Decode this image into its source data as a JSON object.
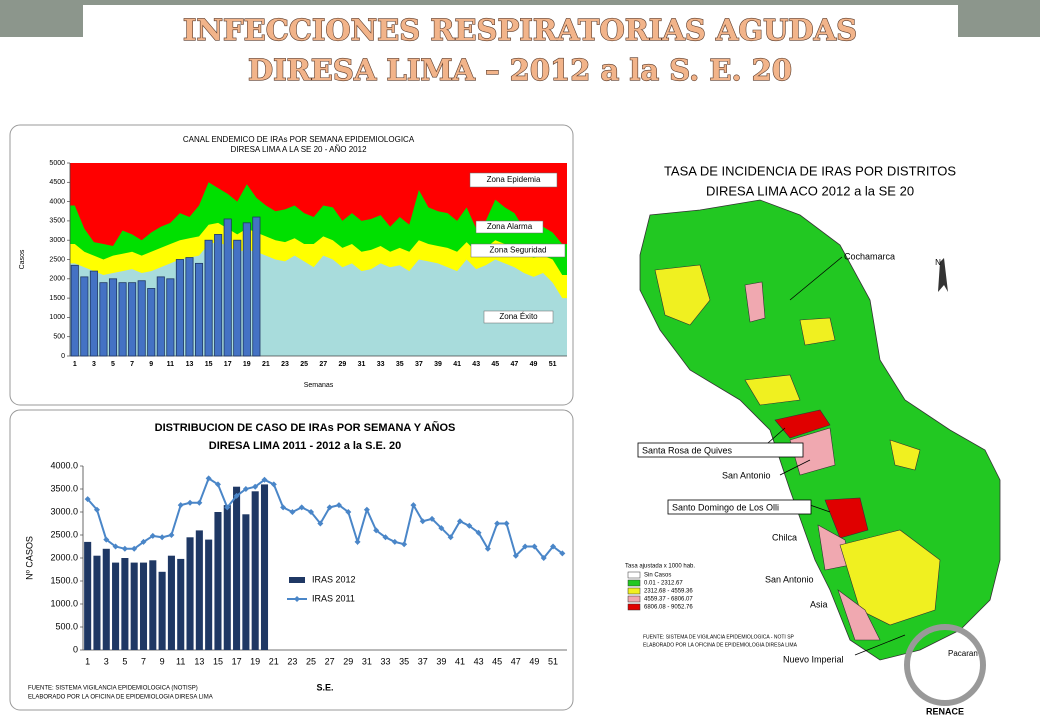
{
  "slide": {
    "title": "INFECCIONES RESPIRATORIAS  AGUDAS",
    "subtitle": "DIRESA LIMA – 2012 a la  S. E. 20"
  },
  "chart_data": [
    {
      "type": "bar",
      "title": "CANAL ENDEMICO  DE IRAs POR SEMANA EPIDEMIOLOGICA",
      "subtitle": "DIRESA  LIMA A LA SE 20 - AÑO 2012",
      "x_label": "Semanas",
      "y_label": "Casos",
      "categories": [
        "1",
        null,
        "3",
        null,
        "5",
        null,
        "7",
        null,
        "9",
        null,
        "11",
        null,
        "13",
        null,
        "15",
        null,
        "17",
        null,
        "19",
        null,
        "21",
        null,
        "23",
        null,
        "25",
        null,
        "27",
        null,
        "29",
        null,
        "31",
        null,
        "33",
        null,
        "35",
        null,
        "37",
        null,
        "39",
        null,
        "41",
        null,
        "43",
        null,
        "45",
        null,
        "47",
        null,
        "49",
        null,
        "51",
        null
      ],
      "ylim": [
        0,
        5000
      ],
      "yticks": [
        0,
        500,
        1000,
        1500,
        2000,
        2500,
        3000,
        3500,
        4000,
        4500,
        5000
      ],
      "epidemic_zone": {
        "name": "Zona Epidemia",
        "color": "#ff0000"
      },
      "zones": [
        {
          "name": "Zona Alarma",
          "color": "#00e000",
          "values": [
            3900,
            3300,
            2950,
            2900,
            2850,
            3250,
            3150,
            3000,
            3200,
            3350,
            3450,
            3700,
            3600,
            3900,
            4500,
            4350,
            4200,
            4000,
            4450,
            4100,
            3900,
            3750,
            3800,
            3900,
            3700,
            3600,
            3900,
            3850,
            3500,
            3700,
            3500,
            3550,
            3650,
            3350,
            3600,
            3400,
            4300,
            3850,
            3750,
            3700,
            3500,
            3850,
            3300,
            3500,
            4050,
            3850,
            3700,
            3300,
            3250,
            3350,
            3200,
            2900
          ]
        },
        {
          "name": "Zona Seguridad",
          "color": "#ffff00",
          "values": [
            2900,
            2700,
            2600,
            2500,
            2600,
            2650,
            2700,
            2600,
            2700,
            2800,
            2900,
            3000,
            3050,
            3100,
            3400,
            3450,
            3300,
            3150,
            3300,
            3200,
            3100,
            3000,
            2950,
            3050,
            2900,
            2900,
            3100,
            3000,
            2800,
            2900,
            2700,
            2750,
            2850,
            2700,
            2800,
            2700,
            3000,
            2900,
            2850,
            2800,
            2700,
            2950,
            2700,
            2800,
            3000,
            2900,
            2800,
            2650,
            2550,
            2600,
            2500,
            2100
          ]
        },
        {
          "name": "Zona Éxito",
          "color": "#a8dcdc",
          "values": [
            2400,
            2300,
            2200,
            2100,
            2150,
            2200,
            2250,
            2150,
            2200,
            2300,
            2400,
            2500,
            2550,
            2600,
            2900,
            2950,
            2850,
            2700,
            2750,
            2700,
            2600,
            2500,
            2450,
            2600,
            2450,
            2300,
            2600,
            2500,
            2300,
            2400,
            2200,
            2250,
            2400,
            2300,
            2350,
            2200,
            2500,
            2450,
            2400,
            2300,
            2200,
            2500,
            2250,
            2350,
            2500,
            2400,
            2300,
            2150,
            2050,
            2150,
            1900,
            1500
          ]
        }
      ],
      "series": [
        {
          "type": "bar",
          "color": "#4472c4",
          "values": [
            2350,
            2050,
            2200,
            1900,
            2000,
            1900,
            1900,
            1950,
            1750,
            2050,
            2000,
            2500,
            2550,
            2400,
            3000,
            3150,
            3550,
            3000,
            3450,
            3600,
            null,
            null,
            null,
            null,
            null,
            null,
            null,
            null,
            null,
            null,
            null,
            null,
            null,
            null,
            null,
            null,
            null,
            null,
            null,
            null,
            null,
            null,
            null,
            null,
            null,
            null,
            null,
            null,
            null,
            null,
            null,
            null
          ]
        }
      ]
    },
    {
      "type": "bar",
      "title": "DISTRIBUCION DE CASO DE IRAs  POR SEMANA Y AÑOS",
      "subtitle": "DIRESA LIMA  2011 - 2012  a la  S.E.  20",
      "x_label": "S.E.",
      "y_label": "Nº CASOS",
      "note": [
        "FUENTE: SISTEMA VIGILANCIA EPIDEMIOLOGICA (NOTISP)",
        "ELABORADO POR LA OFICINA DE EPIDEMIOLOGIA DIRESA LIMA"
      ],
      "categories": [
        "1",
        null,
        "3",
        null,
        "5",
        null,
        "7",
        null,
        "9",
        null,
        "11",
        null,
        "13",
        null,
        "15",
        null,
        "17",
        null,
        "19",
        null,
        "21",
        null,
        "23",
        null,
        "25",
        null,
        "27",
        null,
        "29",
        null,
        "31",
        null,
        "33",
        null,
        "35",
        null,
        "37",
        null,
        "39",
        null,
        "41",
        null,
        "43",
        null,
        "45",
        null,
        "47",
        null,
        "49",
        null,
        "51",
        null
      ],
      "ylim": [
        0,
        4000
      ],
      "yticks": [
        {
          "value": 0,
          "label": "0"
        },
        {
          "value": 500,
          "label": "500.0"
        },
        {
          "value": 1000,
          "label": "1000.0"
        },
        {
          "value": 1500,
          "label": "1500.0"
        },
        {
          "value": 2000,
          "label": "2000.0"
        },
        {
          "value": 2500,
          "label": "2500.0"
        },
        {
          "value": 3000,
          "label": "3000.0"
        },
        {
          "value": 3500,
          "label": "3500.0"
        },
        {
          "value": 4000,
          "label": "4000.0"
        }
      ],
      "series": [
        {
          "name": "IRAS 2012",
          "type": "bar",
          "color": "#1f3864",
          "values": [
            2350,
            2050,
            2200,
            1900,
            2000,
            1900,
            1900,
            1950,
            1700,
            2050,
            1980,
            2450,
            2600,
            2400,
            3000,
            3150,
            3550,
            2950,
            3450,
            3600,
            null,
            null,
            null,
            null,
            null,
            null,
            null,
            null,
            null,
            null,
            null,
            null,
            null,
            null,
            null,
            null,
            null,
            null,
            null,
            null,
            null,
            null,
            null,
            null,
            null,
            null,
            null,
            null,
            null,
            null,
            null,
            null
          ]
        },
        {
          "name": "IRAS 2011",
          "type": "line",
          "color": "#4a86c8",
          "values": [
            3280,
            3050,
            2400,
            2250,
            2200,
            2200,
            2350,
            2480,
            2450,
            2500,
            3150,
            3200,
            3200,
            3730,
            3600,
            3100,
            3350,
            3500,
            3550,
            3700,
            3600,
            3100,
            3000,
            3100,
            3000,
            2750,
            3100,
            3150,
            3000,
            2350,
            3050,
            2600,
            2450,
            2350,
            2300,
            3150,
            2800,
            2850,
            2650,
            2450,
            2800,
            2700,
            2550,
            2200,
            2750,
            2750,
            2050,
            2250,
            2250,
            2000,
            2250,
            2100
          ]
        }
      ]
    }
  ],
  "map": {
    "title": "TASA DE INCIDENCIA DE IRAS POR DISTRITOS",
    "subtitle": "DIRESA LIMA ACO 2012 a la SE 20",
    "north": "N",
    "labels": [
      "Cochamarca",
      "Santa Rosa de Quives",
      "San Antonio",
      "Santo Domingo de Los Olli",
      "Chilca",
      "San Antonio",
      "Asia",
      "Nuevo Imperial",
      "Pacaran"
    ],
    "legend_title": "Tasa ajustada x 1000 hab.",
    "legend": [
      {
        "label": "Sin Casos",
        "color": "#ffffff"
      },
      {
        "label": "0.01 - 2312.67",
        "color": "#22c822"
      },
      {
        "label": "2312.68 - 4559.36",
        "color": "#f0f020"
      },
      {
        "label": "4559.37 - 6806.07",
        "color": "#f0a8b0"
      },
      {
        "label": "6806.08 - 9052.76",
        "color": "#e00000"
      }
    ],
    "note": [
      "FUENTE: SISTEMA DE VIGILANCIA EPIDEMIOLOGICA - NOTI SP",
      "ELABORADO POR LA OFICINA DE EPIDEMIOLOGIA DIRESA LIMA"
    ],
    "logo": "RENACE"
  }
}
